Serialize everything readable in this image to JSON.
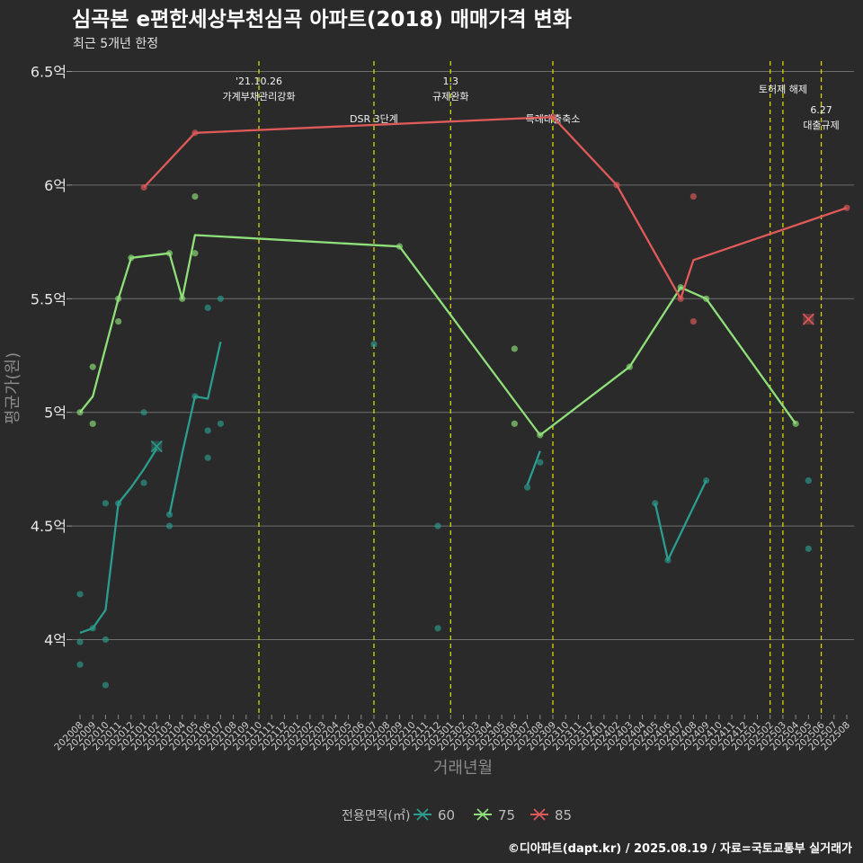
{
  "title": "심곡본 e편한세상부천심곡 아파트(2018) 매매가격 변화",
  "subtitle": "최근 5개년 한정",
  "caption": "©디아파트(dapt.kr) / 2025.08.19 / 자료=국토교통부 실거래가",
  "colors": {
    "background": "#2b2a2a",
    "grid": "#6e6e6e",
    "vline": "#d4d400",
    "s60": "#2a9d8f",
    "s75": "#8fe07a",
    "s85": "#e05a5a"
  },
  "chart_data": {
    "type": "line",
    "xlabel": "거래년월",
    "ylabel": "평균가(원)",
    "ylim": [
      3.68,
      6.55
    ],
    "yticks": [
      {
        "value": 4.0,
        "label": "4억"
      },
      {
        "value": 4.5,
        "label": "4.5억"
      },
      {
        "value": 5.0,
        "label": "5억"
      },
      {
        "value": 5.5,
        "label": "5.5억"
      },
      {
        "value": 6.0,
        "label": "6억"
      },
      {
        "value": 6.5,
        "label": "6.5억"
      }
    ],
    "categories": [
      "202008",
      "202009",
      "202010",
      "202011",
      "202012",
      "202101",
      "202102",
      "202103",
      "202104",
      "202105",
      "202106",
      "202107",
      "202108",
      "202109",
      "202110",
      "202111",
      "202112",
      "202201",
      "202202",
      "202203",
      "202204",
      "202205",
      "202206",
      "202207",
      "202208",
      "202209",
      "202210",
      "202211",
      "202212",
      "202301",
      "202302",
      "202303",
      "202304",
      "202305",
      "202306",
      "202307",
      "202308",
      "202309",
      "202310",
      "202311",
      "202312",
      "202401",
      "202402",
      "202403",
      "202404",
      "202405",
      "202406",
      "202407",
      "202408",
      "202409",
      "202410",
      "202411",
      "202412",
      "202501",
      "202502",
      "202503",
      "202504",
      "202505",
      "202506",
      "202507",
      "202508"
    ],
    "legend": {
      "title": "전용면적(㎡)",
      "position": "bottom"
    },
    "series": [
      {
        "name": "60",
        "color": "#2a9d8f",
        "segments": [
          [
            [
              "202008",
              4.03
            ],
            [
              "202009",
              4.05
            ],
            [
              "202010",
              4.13
            ],
            [
              "202011",
              4.6
            ],
            [
              "202012",
              4.67
            ],
            [
              "202101",
              4.75
            ],
            [
              "202102",
              4.84
            ]
          ],
          [
            [
              "202103",
              4.55
            ],
            [
              "202104",
              4.82
            ],
            [
              "202105",
              5.07
            ],
            [
              "202106",
              5.06
            ],
            [
              "202107",
              5.31
            ]
          ],
          [
            [
              "202307",
              4.68
            ],
            [
              "202308",
              4.83
            ]
          ],
          [
            [
              "202405",
              4.6
            ],
            [
              "202406",
              4.35
            ],
            [
              "202409",
              4.7
            ]
          ]
        ],
        "points": [
          [
            "202008",
            4.2
          ],
          [
            "202008",
            3.99
          ],
          [
            "202008",
            3.89
          ],
          [
            "202009",
            4.05
          ],
          [
            "202010",
            4.6
          ],
          [
            "202010",
            4.0
          ],
          [
            "202010",
            3.8
          ],
          [
            "202011",
            4.6
          ],
          [
            "202101",
            5.0
          ],
          [
            "202101",
            4.69
          ],
          [
            "202103",
            4.5
          ],
          [
            "202103",
            4.55
          ],
          [
            "202105",
            5.07
          ],
          [
            "202106",
            5.46
          ],
          [
            "202106",
            4.92
          ],
          [
            "202106",
            4.8
          ],
          [
            "202107",
            5.5
          ],
          [
            "202107",
            4.95
          ],
          [
            "202207",
            5.3
          ],
          [
            "202212",
            4.5
          ],
          [
            "202212",
            4.05
          ],
          [
            "202307",
            4.67
          ],
          [
            "202308",
            4.78
          ],
          [
            "202405",
            4.6
          ],
          [
            "202406",
            4.35
          ],
          [
            "202409",
            4.7
          ],
          [
            "202505",
            4.7
          ],
          [
            "202505",
            4.4
          ]
        ],
        "markers": [
          [
            "202102",
            4.85
          ]
        ]
      },
      {
        "name": "75",
        "color": "#8fe07a",
        "segments": [
          [
            [
              "202008",
              5.0
            ],
            [
              "202009",
              5.07
            ],
            [
              "202011",
              5.5
            ],
            [
              "202012",
              5.68
            ],
            [
              "202103",
              5.7
            ],
            [
              "202104",
              5.5
            ],
            [
              "202105",
              5.78
            ],
            [
              "202209",
              5.73
            ],
            [
              "202308",
              4.9
            ],
            [
              "202403",
              5.2
            ],
            [
              "202407",
              5.55
            ],
            [
              "202409",
              5.5
            ],
            [
              "202504",
              4.95
            ]
          ]
        ],
        "points": [
          [
            "202008",
            5.0
          ],
          [
            "202009",
            5.2
          ],
          [
            "202009",
            4.95
          ],
          [
            "202011",
            5.5
          ],
          [
            "202011",
            5.4
          ],
          [
            "202012",
            5.68
          ],
          [
            "202103",
            5.7
          ],
          [
            "202104",
            5.5
          ],
          [
            "202105",
            5.95
          ],
          [
            "202105",
            5.7
          ],
          [
            "202209",
            5.73
          ],
          [
            "202306",
            5.28
          ],
          [
            "202306",
            4.95
          ],
          [
            "202308",
            4.9
          ],
          [
            "202403",
            5.2
          ],
          [
            "202407",
            5.55
          ],
          [
            "202409",
            5.5
          ],
          [
            "202504",
            4.95
          ]
        ],
        "markers": []
      },
      {
        "name": "85",
        "color": "#e05a5a",
        "segments": [
          [
            [
              "202101",
              5.99
            ],
            [
              "202105",
              6.23
            ],
            [
              "202309",
              6.3
            ],
            [
              "202402",
              6.0
            ],
            [
              "202407",
              5.5
            ],
            [
              "202408",
              5.67
            ],
            [
              "202508",
              5.9
            ]
          ]
        ],
        "points": [
          [
            "202101",
            5.99
          ],
          [
            "202105",
            6.23
          ],
          [
            "202309",
            6.3
          ],
          [
            "202402",
            6.0
          ],
          [
            "202407",
            5.5
          ],
          [
            "202408",
            5.95
          ],
          [
            "202408",
            5.4
          ],
          [
            "202508",
            5.9
          ]
        ],
        "markers": [
          [
            "202505",
            5.41
          ]
        ]
      }
    ],
    "annotations": [
      {
        "x": "202110",
        "lines": [
          "'21.10.26",
          "가계부채관리강화"
        ],
        "level": 1
      },
      {
        "x": "202207",
        "lines": [
          "DSR 3단계"
        ],
        "level": 3
      },
      {
        "x": "202301",
        "lines": [
          "1.3",
          "규제완화"
        ],
        "level": 1
      },
      {
        "x": "202309",
        "lines": [
          "특례대출축소"
        ],
        "level": 3
      },
      {
        "x": "202502",
        "lines": [],
        "level": 0
      },
      {
        "x": "202503",
        "lines": [
          "토허제 해제"
        ],
        "level": 2
      },
      {
        "x": "202506",
        "lines": [
          "6.27",
          "대출규제"
        ],
        "level": 4
      }
    ]
  }
}
